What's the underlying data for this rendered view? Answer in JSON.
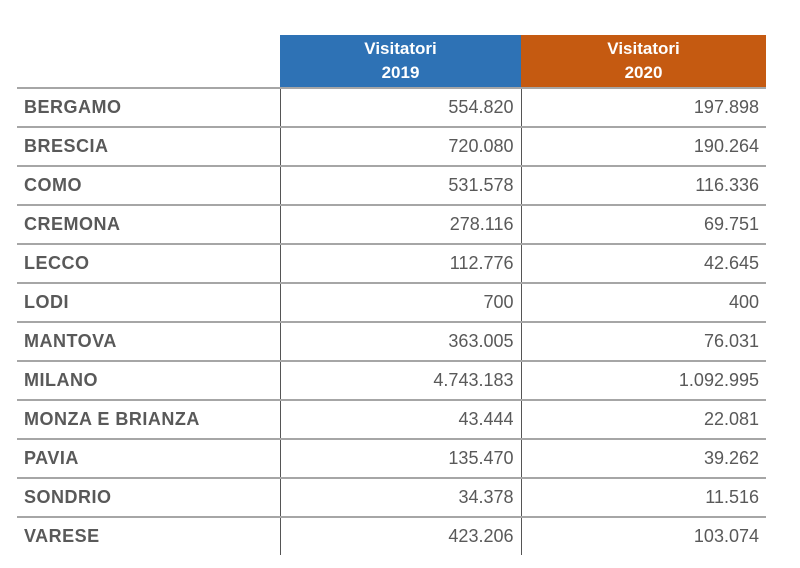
{
  "header": {
    "col_2019": {
      "line1": "Visitatori",
      "line2": "2019"
    },
    "col_2020": {
      "line1": "Visitatori",
      "line2": "2020"
    }
  },
  "colors": {
    "header_2019": "#2e72b5",
    "header_2020": "#c55a11",
    "text": "#595959"
  },
  "rows": [
    {
      "province": "BERGAMO",
      "v2019": "554.820",
      "v2020": "197.898"
    },
    {
      "province": "BRESCIA",
      "v2019": "720.080",
      "v2020": "190.264"
    },
    {
      "province": "COMO",
      "v2019": "531.578",
      "v2020": "116.336"
    },
    {
      "province": "CREMONA",
      "v2019": "278.116",
      "v2020": "69.751"
    },
    {
      "province": "LECCO",
      "v2019": "112.776",
      "v2020": "42.645"
    },
    {
      "province": "LODI",
      "v2019": "700",
      "v2020": "400"
    },
    {
      "province": "MANTOVA",
      "v2019": "363.005",
      "v2020": "76.031"
    },
    {
      "province": "MILANO",
      "v2019": "4.743.183",
      "v2020": "1.092.995"
    },
    {
      "province": "MONZA E BRIANZA",
      "v2019": "43.444",
      "v2020": "22.081"
    },
    {
      "province": "PAVIA",
      "v2019": "135.470",
      "v2020": "39.262"
    },
    {
      "province": "SONDRIO",
      "v2019": "34.378",
      "v2020": "11.516"
    },
    {
      "province": "VARESE",
      "v2019": "423.206",
      "v2020": "103.074"
    }
  ]
}
